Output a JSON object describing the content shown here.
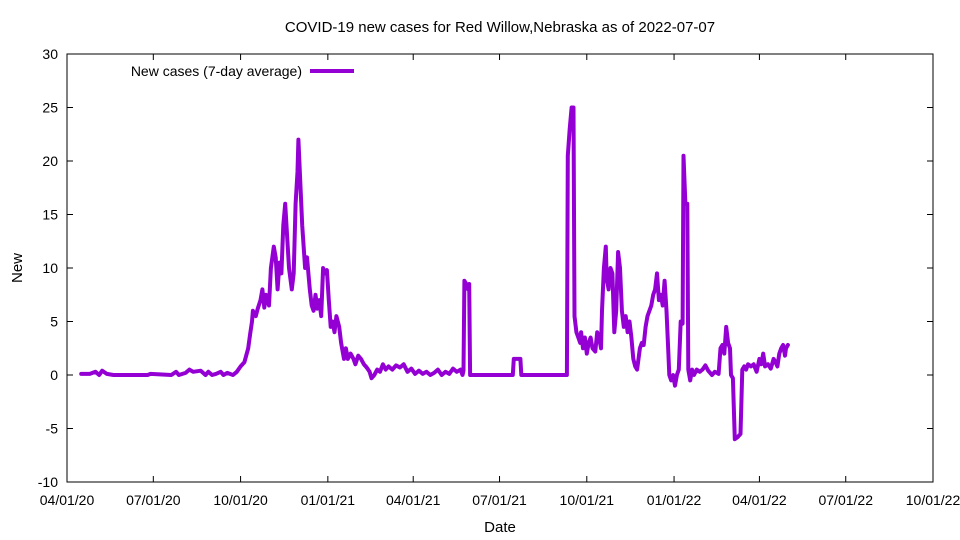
{
  "chart_data": {
    "type": "line",
    "title": "COVID-19 new cases for Red Willow,Nebraska as of 2022-07-07",
    "xlabel": "Date",
    "ylabel": "New",
    "ylim": [
      -10,
      30
    ],
    "yticks": [
      -10,
      -5,
      0,
      5,
      10,
      15,
      20,
      25,
      30
    ],
    "xlim": [
      "2020-04-01",
      "2022-10-01"
    ],
    "xticks": [
      "04/01/20",
      "07/01/20",
      "10/01/20",
      "01/01/21",
      "04/01/21",
      "07/01/21",
      "10/01/21",
      "01/01/22",
      "04/01/22",
      "07/01/22",
      "10/01/22"
    ],
    "series": [
      {
        "name": "New cases (7-day average)",
        "color": "#9400d3",
        "points": [
          [
            "2020-04-16",
            0.1
          ],
          [
            "2020-04-25",
            0.1
          ],
          [
            "2020-05-01",
            0.3
          ],
          [
            "2020-05-05",
            0.0
          ],
          [
            "2020-05-08",
            0.4
          ],
          [
            "2020-05-13",
            0.1
          ],
          [
            "2020-05-20",
            0.0
          ],
          [
            "2020-06-25",
            0.0
          ],
          [
            "2020-06-28",
            0.1
          ],
          [
            "2020-07-20",
            0.0
          ],
          [
            "2020-07-25",
            0.3
          ],
          [
            "2020-07-28",
            0.0
          ],
          [
            "2020-08-04",
            0.2
          ],
          [
            "2020-08-08",
            0.5
          ],
          [
            "2020-08-12",
            0.3
          ],
          [
            "2020-08-20",
            0.4
          ],
          [
            "2020-08-25",
            0.0
          ],
          [
            "2020-08-28",
            0.3
          ],
          [
            "2020-09-01",
            0.0
          ],
          [
            "2020-09-05",
            0.1
          ],
          [
            "2020-09-10",
            0.3
          ],
          [
            "2020-09-13",
            0.0
          ],
          [
            "2020-09-17",
            0.2
          ],
          [
            "2020-09-23",
            0.0
          ],
          [
            "2020-09-27",
            0.3
          ],
          [
            "2020-10-01",
            0.8
          ],
          [
            "2020-10-05",
            1.2
          ],
          [
            "2020-10-09",
            2.5
          ],
          [
            "2020-10-11",
            3.8
          ],
          [
            "2020-10-13",
            5.0
          ],
          [
            "2020-10-14",
            6.0
          ],
          [
            "2020-10-17",
            5.5
          ],
          [
            "2020-10-19",
            6.2
          ],
          [
            "2020-10-22",
            7.0
          ],
          [
            "2020-10-24",
            8.0
          ],
          [
            "2020-10-26",
            6.3
          ],
          [
            "2020-10-28",
            7.5
          ],
          [
            "2020-10-31",
            6.5
          ],
          [
            "2020-11-02",
            10.0
          ],
          [
            "2020-11-05",
            12.0
          ],
          [
            "2020-11-07",
            11.0
          ],
          [
            "2020-11-09",
            8.0
          ],
          [
            "2020-11-11",
            10.5
          ],
          [
            "2020-11-13",
            9.5
          ],
          [
            "2020-11-15",
            14.0
          ],
          [
            "2020-11-17",
            16.0
          ],
          [
            "2020-11-19",
            13.0
          ],
          [
            "2020-11-21",
            10.0
          ],
          [
            "2020-11-24",
            8.0
          ],
          [
            "2020-11-26",
            9.5
          ],
          [
            "2020-11-28",
            16.0
          ],
          [
            "2020-11-30",
            19.0
          ],
          [
            "2020-12-01",
            22.0
          ],
          [
            "2020-12-03",
            18.0
          ],
          [
            "2020-12-05",
            14.0
          ],
          [
            "2020-12-08",
            10.0
          ],
          [
            "2020-12-10",
            11.0
          ],
          [
            "2020-12-13",
            8.0
          ],
          [
            "2020-12-15",
            6.5
          ],
          [
            "2020-12-17",
            6.0
          ],
          [
            "2020-12-19",
            7.5
          ],
          [
            "2020-12-21",
            6.2
          ],
          [
            "2020-12-23",
            7.0
          ],
          [
            "2020-12-25",
            5.5
          ],
          [
            "2020-12-27",
            10.0
          ],
          [
            "2020-12-29",
            9.5
          ],
          [
            "2020-12-31",
            9.8
          ],
          [
            "2021-01-02",
            7.0
          ],
          [
            "2021-01-04",
            4.5
          ],
          [
            "2021-01-06",
            5.0
          ],
          [
            "2021-01-08",
            4.0
          ],
          [
            "2021-01-10",
            5.5
          ],
          [
            "2021-01-13",
            4.5
          ],
          [
            "2021-01-15",
            3.0
          ],
          [
            "2021-01-18",
            1.5
          ],
          [
            "2021-01-20",
            2.5
          ],
          [
            "2021-01-22",
            1.5
          ],
          [
            "2021-01-25",
            2.0
          ],
          [
            "2021-01-28",
            1.5
          ],
          [
            "2021-01-30",
            1.0
          ],
          [
            "2021-02-02",
            1.8
          ],
          [
            "2021-02-05",
            1.5
          ],
          [
            "2021-02-08",
            1.0
          ],
          [
            "2021-02-11",
            0.7
          ],
          [
            "2021-02-14",
            0.3
          ],
          [
            "2021-02-16",
            -0.3
          ],
          [
            "2021-02-19",
            0.0
          ],
          [
            "2021-02-22",
            0.5
          ],
          [
            "2021-02-25",
            0.3
          ],
          [
            "2021-02-28",
            1.0
          ],
          [
            "2021-03-03",
            0.5
          ],
          [
            "2021-03-06",
            0.8
          ],
          [
            "2021-03-10",
            0.5
          ],
          [
            "2021-03-14",
            0.9
          ],
          [
            "2021-03-18",
            0.7
          ],
          [
            "2021-03-22",
            1.0
          ],
          [
            "2021-03-26",
            0.3
          ],
          [
            "2021-03-30",
            0.6
          ],
          [
            "2021-04-03",
            0.1
          ],
          [
            "2021-04-07",
            0.4
          ],
          [
            "2021-04-11",
            0.1
          ],
          [
            "2021-04-15",
            0.3
          ],
          [
            "2021-04-19",
            0.0
          ],
          [
            "2021-04-23",
            0.2
          ],
          [
            "2021-04-27",
            0.5
          ],
          [
            "2021-05-01",
            0.0
          ],
          [
            "2021-05-05",
            0.3
          ],
          [
            "2021-05-09",
            0.1
          ],
          [
            "2021-05-13",
            0.6
          ],
          [
            "2021-05-17",
            0.3
          ],
          [
            "2021-05-21",
            0.5
          ],
          [
            "2021-05-23",
            0.0
          ],
          [
            "2021-05-24",
            0.4
          ],
          [
            "2021-05-25",
            8.8
          ],
          [
            "2021-05-27",
            8.5
          ],
          [
            "2021-05-29",
            8.0
          ],
          [
            "2021-05-30",
            8.5
          ],
          [
            "2021-05-31",
            0.0
          ],
          [
            "2021-07-15",
            0.0
          ],
          [
            "2021-07-16",
            1.5
          ],
          [
            "2021-07-23",
            1.5
          ],
          [
            "2021-07-24",
            0.0
          ],
          [
            "2021-09-10",
            0.0
          ],
          [
            "2021-09-11",
            20.5
          ],
          [
            "2021-09-13",
            23.0
          ],
          [
            "2021-09-15",
            25.0
          ],
          [
            "2021-09-17",
            25.0
          ],
          [
            "2021-09-18",
            5.5
          ],
          [
            "2021-09-20",
            4.0
          ],
          [
            "2021-09-22",
            3.5
          ],
          [
            "2021-09-24",
            3.0
          ],
          [
            "2021-09-25",
            4.0
          ],
          [
            "2021-09-27",
            2.5
          ],
          [
            "2021-09-29",
            3.5
          ],
          [
            "2021-10-01",
            2.0
          ],
          [
            "2021-10-03",
            3.0
          ],
          [
            "2021-10-05",
            3.5
          ],
          [
            "2021-10-07",
            2.5
          ],
          [
            "2021-10-10",
            2.2
          ],
          [
            "2021-10-12",
            4.0
          ],
          [
            "2021-10-14",
            3.5
          ],
          [
            "2021-10-16",
            2.5
          ],
          [
            "2021-10-17",
            6.0
          ],
          [
            "2021-10-19",
            10.0
          ],
          [
            "2021-10-21",
            12.0
          ],
          [
            "2021-10-22",
            9.0
          ],
          [
            "2021-10-24",
            8.0
          ],
          [
            "2021-10-26",
            10.0
          ],
          [
            "2021-10-28",
            9.5
          ],
          [
            "2021-10-30",
            4.0
          ],
          [
            "2021-11-01",
            6.0
          ],
          [
            "2021-11-03",
            11.5
          ],
          [
            "2021-11-05",
            10.0
          ],
          [
            "2021-11-07",
            6.0
          ],
          [
            "2021-11-09",
            4.5
          ],
          [
            "2021-11-11",
            5.5
          ],
          [
            "2021-11-13",
            4.0
          ],
          [
            "2021-11-15",
            5.0
          ],
          [
            "2021-11-17",
            3.5
          ],
          [
            "2021-11-19",
            1.5
          ],
          [
            "2021-11-21",
            0.8
          ],
          [
            "2021-11-23",
            0.5
          ],
          [
            "2021-11-26",
            2.5
          ],
          [
            "2021-11-28",
            3.0
          ],
          [
            "2021-11-30",
            2.8
          ],
          [
            "2021-12-02",
            4.5
          ],
          [
            "2021-12-04",
            5.5
          ],
          [
            "2021-12-06",
            6.0
          ],
          [
            "2021-12-08",
            6.5
          ],
          [
            "2021-12-10",
            7.5
          ],
          [
            "2021-12-12",
            8.0
          ],
          [
            "2021-12-14",
            9.5
          ],
          [
            "2021-12-16",
            7.0
          ],
          [
            "2021-12-18",
            7.5
          ],
          [
            "2021-12-20",
            6.5
          ],
          [
            "2021-12-22",
            8.8
          ],
          [
            "2021-12-24",
            6.0
          ],
          [
            "2021-12-26",
            2.0
          ],
          [
            "2021-12-27",
            0.0
          ],
          [
            "2021-12-29",
            -0.5
          ],
          [
            "2021-12-31",
            0.0
          ],
          [
            "2022-01-02",
            -1.0
          ],
          [
            "2022-01-04",
            0.0
          ],
          [
            "2022-01-06",
            0.5
          ],
          [
            "2022-01-08",
            5.0
          ],
          [
            "2022-01-10",
            4.8
          ],
          [
            "2022-01-11",
            20.5
          ],
          [
            "2022-01-13",
            16.0
          ],
          [
            "2022-01-15",
            16.0
          ],
          [
            "2022-01-16",
            0.5
          ],
          [
            "2022-01-18",
            -0.5
          ],
          [
            "2022-01-20",
            0.5
          ],
          [
            "2022-01-22",
            0.0
          ],
          [
            "2022-01-25",
            0.5
          ],
          [
            "2022-01-28",
            0.3
          ],
          [
            "2022-01-31",
            0.5
          ],
          [
            "2022-02-03",
            0.9
          ],
          [
            "2022-02-06",
            0.4
          ],
          [
            "2022-02-10",
            0.0
          ],
          [
            "2022-02-13",
            0.3
          ],
          [
            "2022-02-17",
            0.1
          ],
          [
            "2022-02-19",
            2.5
          ],
          [
            "2022-02-21",
            2.8
          ],
          [
            "2022-02-23",
            2.0
          ],
          [
            "2022-02-25",
            4.5
          ],
          [
            "2022-02-27",
            3.0
          ],
          [
            "2022-03-01",
            2.5
          ],
          [
            "2022-03-02",
            0.0
          ],
          [
            "2022-03-04",
            -0.3
          ],
          [
            "2022-03-06",
            -6.0
          ],
          [
            "2022-03-09",
            -5.8
          ],
          [
            "2022-03-12",
            -5.5
          ],
          [
            "2022-03-14",
            0.5
          ],
          [
            "2022-03-16",
            0.8
          ],
          [
            "2022-03-18",
            0.5
          ],
          [
            "2022-03-20",
            1.0
          ],
          [
            "2022-03-23",
            0.8
          ],
          [
            "2022-03-26",
            1.0
          ],
          [
            "2022-03-29",
            0.3
          ],
          [
            "2022-04-01",
            1.5
          ],
          [
            "2022-04-03",
            1.0
          ],
          [
            "2022-04-05",
            2.0
          ],
          [
            "2022-04-07",
            0.8
          ],
          [
            "2022-04-10",
            1.0
          ],
          [
            "2022-04-13",
            0.6
          ],
          [
            "2022-04-16",
            1.5
          ],
          [
            "2022-04-18",
            1.2
          ],
          [
            "2022-04-20",
            0.8
          ],
          [
            "2022-04-22",
            2.0
          ],
          [
            "2022-04-24",
            2.5
          ],
          [
            "2022-04-26",
            2.8
          ],
          [
            "2022-04-28",
            1.8
          ],
          [
            "2022-04-29",
            2.5
          ],
          [
            "2022-05-01",
            2.8
          ]
        ]
      }
    ]
  }
}
